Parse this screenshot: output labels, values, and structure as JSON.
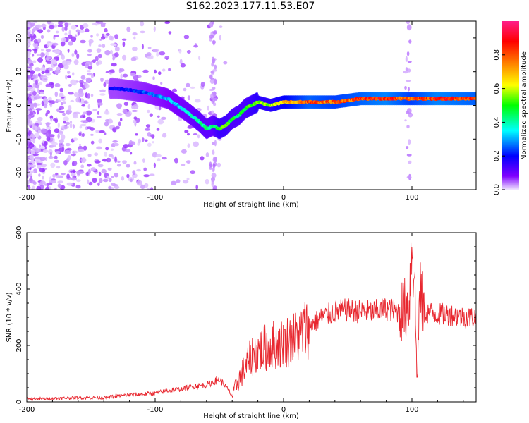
{
  "title": "S162.2023.177.11.53.E07",
  "chart_data": [
    {
      "type": "heatmap",
      "title": "S162.2023.177.11.53.E07",
      "xlabel": "Height of straight line (km)",
      "ylabel": "Frequency (Hz)",
      "xlim": [
        -200,
        150
      ],
      "ylim": [
        -25,
        25
      ],
      "xticks": [
        -200,
        -100,
        0,
        100
      ],
      "yticks": [
        -20,
        -10,
        0,
        10,
        20
      ],
      "colorbar": {
        "label": "Normalized spectral amplitude",
        "range": [
          0.0,
          1.0
        ],
        "ticks": [
          "0.0",
          "0.2",
          "0.4",
          "0.6",
          "0.8"
        ],
        "colors": [
          "#f0e6ff",
          "#8000ff",
          "#0000ff",
          "#00ffff",
          "#00ff00",
          "#ffff00",
          "#ff8000",
          "#ff0000",
          "#ff1f8a"
        ]
      },
      "ridge": {
        "x": [
          -130,
          -110,
          -90,
          -75,
          -65,
          -60,
          -55,
          -50,
          -45,
          -40,
          -35,
          -30,
          -25,
          -20,
          -10,
          0,
          20,
          40,
          60,
          80,
          100,
          120,
          150
        ],
        "y": [
          5,
          4,
          2,
          -2,
          -5,
          -7,
          -6,
          -7,
          -6,
          -4,
          -3,
          -1,
          0,
          1,
          0,
          1,
          1,
          1,
          2,
          2,
          2,
          2,
          2
        ],
        "amplitude": [
          0.25,
          0.3,
          0.35,
          0.4,
          0.45,
          0.45,
          0.45,
          0.55,
          0.55,
          0.5,
          0.5,
          0.5,
          0.55,
          0.6,
          0.6,
          0.7,
          0.85,
          0.8,
          0.85,
          0.9,
          0.8,
          0.9,
          0.85
        ]
      },
      "colors": {
        "line": "#e8262e"
      }
    },
    {
      "type": "line",
      "xlabel": "Height of straight line (km)",
      "ylabel": "SNR (10 * v/v)",
      "xlim": [
        -200,
        150
      ],
      "ylim": [
        0,
        600
      ],
      "xticks": [
        -200,
        -100,
        0,
        100
      ],
      "yticks": [
        0,
        200,
        400,
        600
      ],
      "series": [
        {
          "color": "#e8262e",
          "x": [
            -200,
            -180,
            -160,
            -140,
            -120,
            -100,
            -90,
            -80,
            -70,
            -60,
            -50,
            -45,
            -40,
            -35,
            -30,
            -25,
            -20,
            -10,
            0,
            10,
            20,
            30,
            40,
            50,
            60,
            70,
            80,
            90,
            95,
            98,
            100,
            102,
            104,
            106,
            110,
            120,
            130,
            140,
            150
          ],
          "y": [
            10,
            12,
            15,
            15,
            25,
            30,
            40,
            45,
            55,
            60,
            80,
            55,
            20,
            80,
            120,
            160,
            180,
            200,
            210,
            230,
            270,
            300,
            320,
            325,
            320,
            320,
            330,
            320,
            330,
            360,
            590,
            450,
            60,
            380,
            320,
            310,
            310,
            300,
            300
          ]
        }
      ]
    }
  ]
}
